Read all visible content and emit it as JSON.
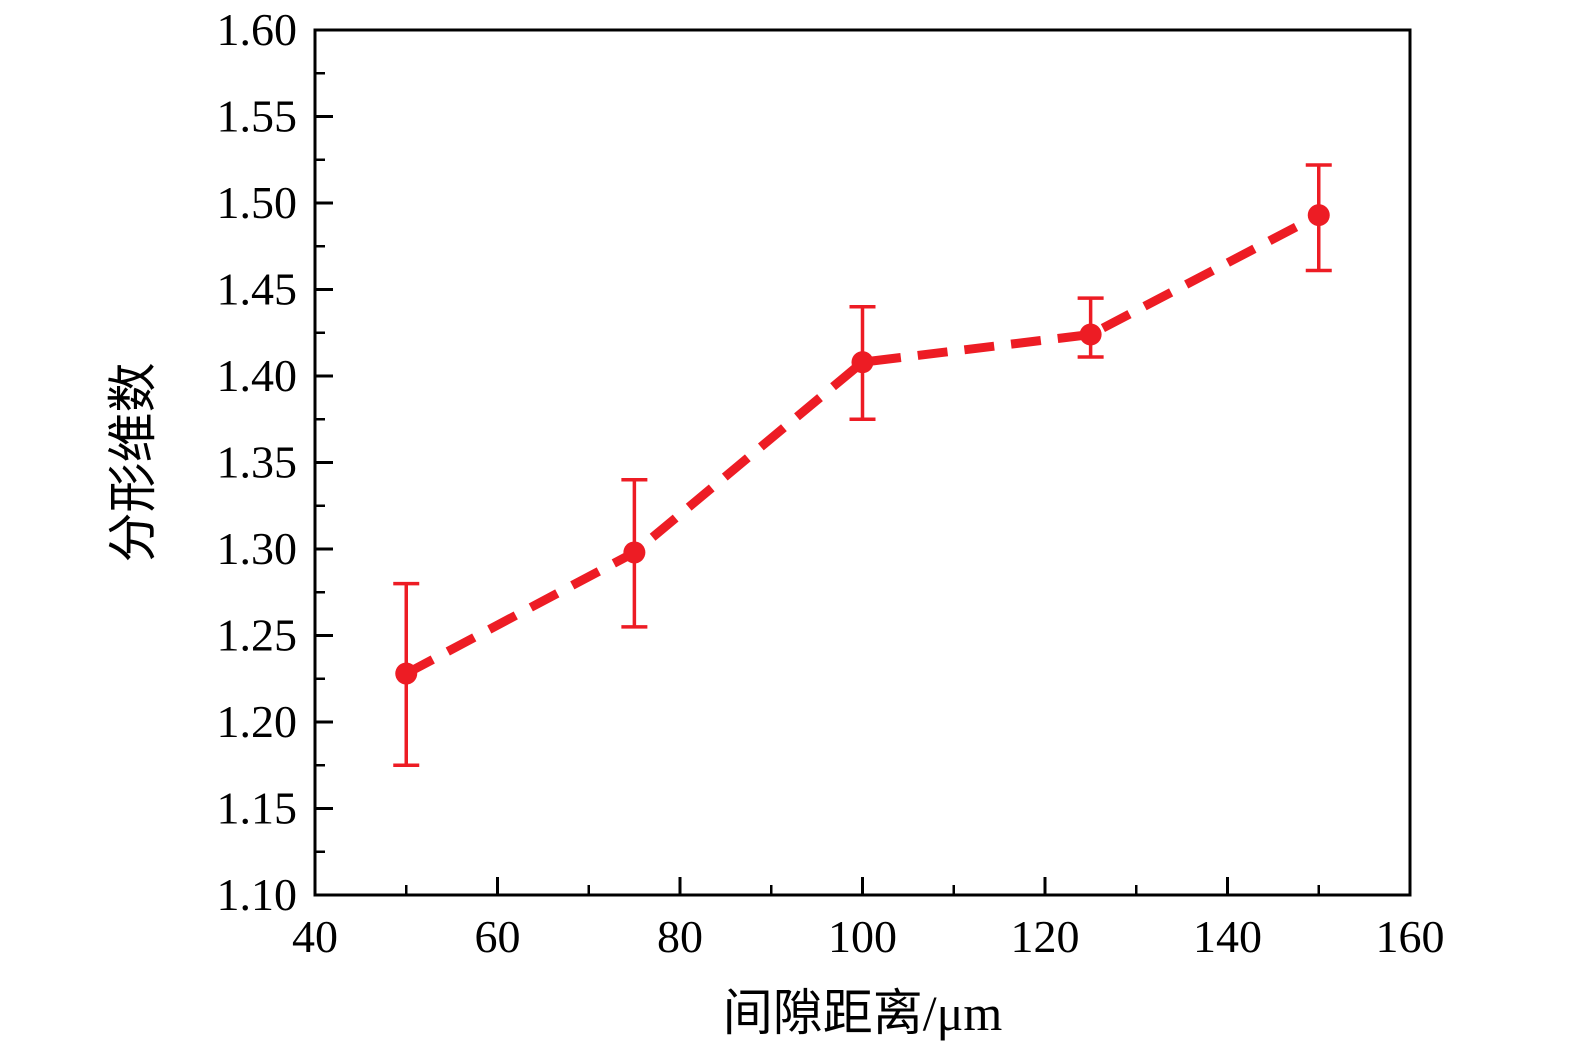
{
  "chart_data": {
    "type": "line",
    "title": "",
    "xlabel": "间隙距离/μm",
    "ylabel": "分形维数",
    "x": [
      50,
      75,
      100,
      125,
      150
    ],
    "y": [
      1.228,
      1.298,
      1.408,
      1.424,
      1.493
    ],
    "y_upper": [
      1.28,
      1.34,
      1.44,
      1.445,
      1.522
    ],
    "y_lower": [
      1.175,
      1.255,
      1.375,
      1.411,
      1.461
    ],
    "xlim": [
      40,
      160
    ],
    "ylim": [
      1.1,
      1.6
    ],
    "x_major_ticks": [
      40,
      60,
      80,
      100,
      120,
      140,
      160
    ],
    "x_minor_ticks": [
      50,
      70,
      90,
      110,
      130,
      150
    ],
    "x_tick_labels": [
      "40",
      "60",
      "80",
      "100",
      "120",
      "140",
      "160"
    ],
    "y_major_ticks": [
      1.1,
      1.15,
      1.2,
      1.25,
      1.3,
      1.35,
      1.4,
      1.45,
      1.5,
      1.55,
      1.6
    ],
    "y_minor_ticks": [
      1.125,
      1.175,
      1.225,
      1.275,
      1.325,
      1.375,
      1.425,
      1.475,
      1.525,
      1.575
    ],
    "y_tick_labels": [
      "1.10",
      "1.15",
      "1.20",
      "1.25",
      "1.30",
      "1.35",
      "1.40",
      "1.45",
      "1.50",
      "1.55",
      "1.60"
    ],
    "grid": false,
    "legend": "none",
    "line_style": "dashed",
    "marker": "circle",
    "colors": {
      "series": "#ed1c24",
      "axis": "#000000",
      "background": "#ffffff"
    }
  }
}
